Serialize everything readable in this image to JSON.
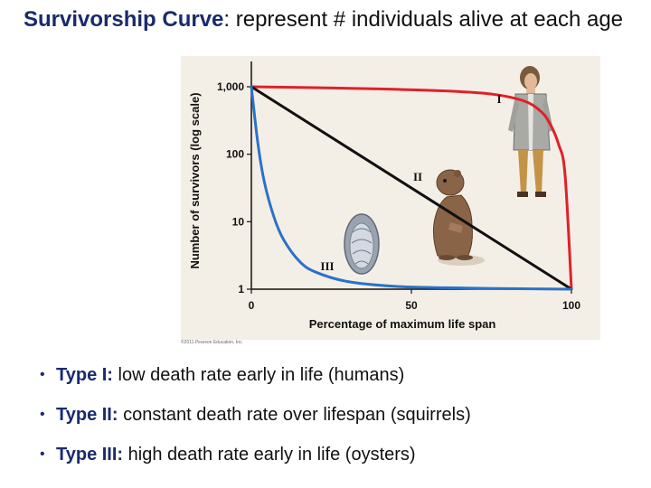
{
  "slide": {
    "title_strong": "Survivorship Curve",
    "title_rest": ": represent # individuals alive at each age",
    "copyright": "©2011 Pearson Education, Inc."
  },
  "bullets": [
    {
      "term": "Type I:",
      "text": " low death rate early in life (humans)"
    },
    {
      "term": "Type II:",
      "text": " constant death rate over lifespan (squirrels)"
    },
    {
      "term": "Type III:",
      "text": " high death rate early in life (oysters)"
    }
  ],
  "chart_data": {
    "type": "line",
    "title": "",
    "xlabel": "Percentage of maximum life span",
    "ylabel": "Number of survivors (log scale)",
    "xlim": [
      0,
      100
    ],
    "ylim": [
      1,
      1000
    ],
    "yscale": "log",
    "x_ticks": [
      0,
      50,
      100
    ],
    "x_tick_labels": [
      "0",
      "50",
      "100"
    ],
    "y_ticks": [
      1,
      10,
      100,
      1000
    ],
    "y_tick_labels": [
      "1",
      "10",
      "100",
      "1,000"
    ],
    "grid": false,
    "series": [
      {
        "name": "I",
        "color": "#e0202a",
        "x": [
          0,
          20,
          40,
          60,
          75,
          85,
          90,
          93,
          96,
          98,
          100
        ],
        "y": [
          1000,
          970,
          930,
          870,
          780,
          620,
          450,
          300,
          140,
          50,
          1
        ]
      },
      {
        "name": "II",
        "color": "#111111",
        "x": [
          0,
          100
        ],
        "y": [
          1000,
          1
        ]
      },
      {
        "name": "III",
        "color": "#2a72c8",
        "x": [
          0,
          2,
          4,
          7,
          10,
          15,
          20,
          30,
          45,
          60,
          80,
          100
        ],
        "y": [
          1000,
          150,
          40,
          12,
          5.5,
          2.6,
          1.8,
          1.3,
          1.1,
          1.05,
          1.02,
          1
        ]
      }
    ],
    "illustrations": [
      "human-icon",
      "squirrel-icon",
      "oyster-icon"
    ]
  }
}
